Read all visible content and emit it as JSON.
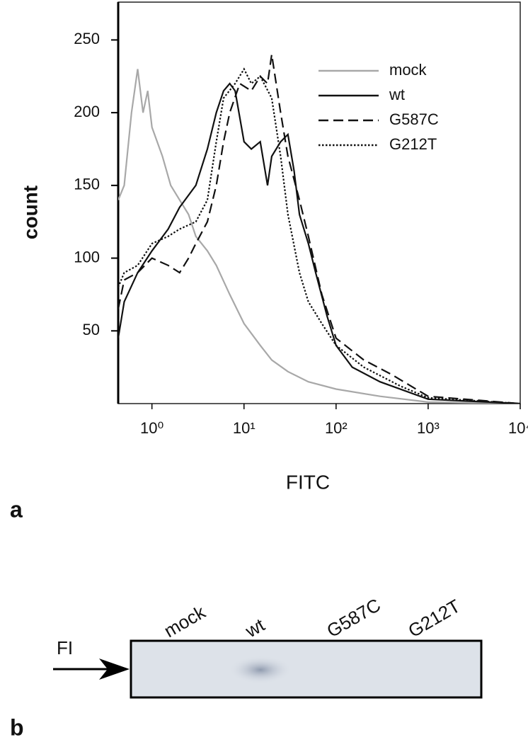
{
  "chart_data": {
    "type": "line",
    "x_label": "FITC",
    "y_label": "count",
    "xscale": "log",
    "xlim": [
      0.43,
      10000
    ],
    "xticks": [
      {
        "value": 1,
        "label": "10⁰"
      },
      {
        "value": 10,
        "label": "10¹"
      },
      {
        "value": 100,
        "label": "10²"
      },
      {
        "value": 1000,
        "label": "10³"
      },
      {
        "value": 10000,
        "label": "10⁴"
      }
    ],
    "ylim": [
      0,
      276
    ],
    "yticks": [
      50,
      100,
      150,
      200,
      250
    ],
    "legend": "upper right",
    "series": [
      {
        "name": "mock",
        "color": "#a8a8a8",
        "dash": "solid",
        "x": [
          0.43,
          0.5,
          0.6,
          0.7,
          0.8,
          0.9,
          1,
          1.3,
          1.6,
          2,
          2.5,
          3,
          4,
          5,
          7,
          10,
          15,
          20,
          30,
          50,
          100,
          300,
          1000,
          10000
        ],
        "values": [
          140,
          150,
          200,
          230,
          200,
          215,
          190,
          170,
          150,
          140,
          130,
          115,
          105,
          95,
          75,
          55,
          40,
          30,
          22,
          15,
          10,
          5,
          1,
          0
        ]
      },
      {
        "name": "wt",
        "color": "#111111",
        "dash": "solid",
        "x": [
          0.43,
          0.5,
          0.7,
          1,
          1.5,
          2,
          3,
          4,
          5,
          6,
          7,
          8,
          10,
          12,
          15,
          18,
          20,
          25,
          30,
          35,
          40,
          50,
          60,
          80,
          100,
          150,
          300,
          1000,
          10000
        ],
        "values": [
          45,
          70,
          90,
          105,
          120,
          135,
          150,
          175,
          200,
          215,
          220,
          215,
          180,
          175,
          180,
          150,
          170,
          180,
          185,
          160,
          130,
          110,
          90,
          60,
          40,
          25,
          15,
          3,
          0
        ]
      },
      {
        "name": "G587C",
        "color": "#111111",
        "dash": "dashed",
        "x": [
          0.43,
          0.5,
          0.7,
          1,
          1.5,
          2,
          2.5,
          3,
          4,
          5,
          6,
          7,
          9,
          12,
          15,
          18,
          20,
          25,
          30,
          40,
          50,
          70,
          100,
          200,
          400,
          1000,
          10000
        ],
        "values": [
          65,
          85,
          90,
          100,
          95,
          90,
          100,
          110,
          125,
          150,
          180,
          200,
          220,
          215,
          225,
          220,
          240,
          200,
          170,
          140,
          115,
          75,
          45,
          30,
          20,
          5,
          0
        ]
      },
      {
        "name": "G212T",
        "color": "#111111",
        "dash": "dotted",
        "x": [
          0.43,
          0.5,
          0.7,
          1,
          1.5,
          2,
          3,
          4,
          5,
          6,
          8,
          10,
          12,
          15,
          20,
          25,
          30,
          40,
          50,
          70,
          100,
          200,
          500,
          1000,
          10000
        ],
        "values": [
          80,
          90,
          95,
          110,
          115,
          120,
          125,
          140,
          180,
          210,
          220,
          230,
          220,
          225,
          210,
          170,
          130,
          90,
          70,
          55,
          40,
          25,
          12,
          4,
          0
        ]
      }
    ]
  },
  "panels": [
    "a",
    "b"
  ],
  "blot": {
    "lanes": [
      "mock",
      "wt",
      "G587C",
      "G212T"
    ],
    "marker": "FI"
  }
}
